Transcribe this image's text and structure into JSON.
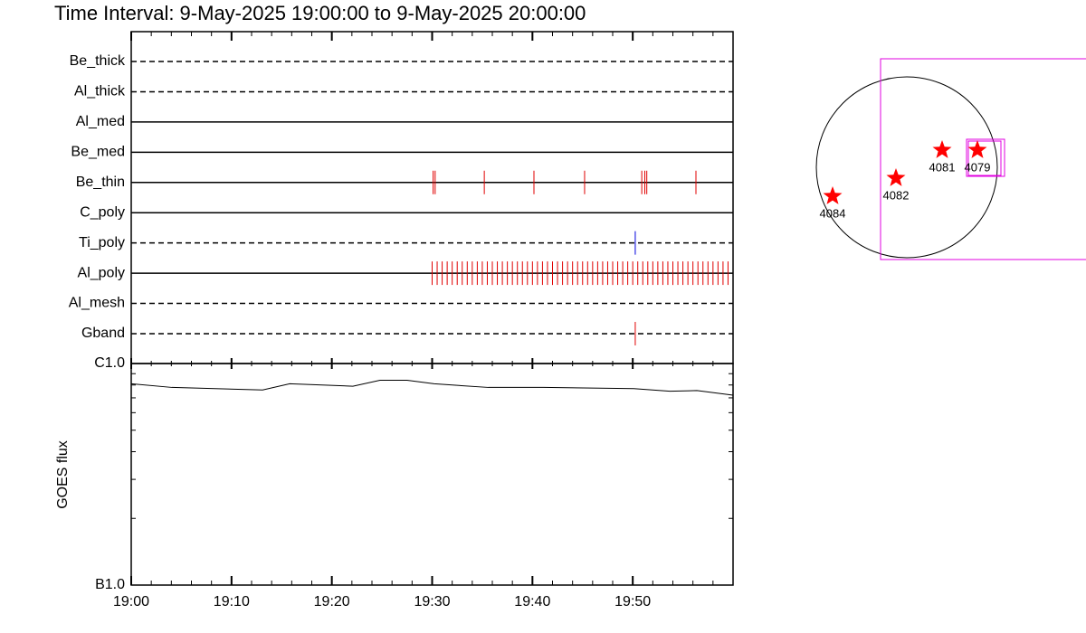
{
  "chart_data": [
    {
      "type": "event",
      "title": "Time Interval:  9-May-2025 19:00:00 to  9-May-2025 20:00:00",
      "xlim": [
        0,
        60
      ],
      "series": [
        {
          "name": "Be_thick",
          "style": "dashed",
          "color": "#e00000",
          "values": []
        },
        {
          "name": "Al_thick",
          "style": "dashed",
          "color": "#e00000",
          "values": []
        },
        {
          "name": "Al_med",
          "style": "solid",
          "color": "#e00000",
          "values": []
        },
        {
          "name": "Be_med",
          "style": "solid",
          "color": "#e00000",
          "values": []
        },
        {
          "name": "Be_thin",
          "style": "solid",
          "color": "#e00000",
          "values": [
            30.1,
            30.3,
            35.2,
            40.15,
            45.2,
            50.9,
            51.2,
            51.4,
            56.3
          ]
        },
        {
          "name": "C_poly",
          "style": "solid",
          "color": "#e00000",
          "values": []
        },
        {
          "name": "Ti_poly",
          "style": "dashed",
          "color": "#0000dd",
          "values": [
            50.25
          ]
        },
        {
          "name": "Al_poly",
          "style": "solid",
          "color": "#e00000",
          "values": [
            30,
            30.5,
            31,
            31.5,
            32,
            32.5,
            33,
            33.5,
            34,
            34.5,
            35,
            35.5,
            36,
            36.5,
            37,
            37.5,
            38,
            38.5,
            39,
            39.5,
            40,
            40.5,
            41,
            41.5,
            42,
            42.5,
            43,
            43.5,
            44,
            44.5,
            45,
            45.5,
            46,
            46.5,
            47,
            47.5,
            48,
            48.5,
            49,
            49.5,
            50,
            50.5,
            51,
            51.5,
            52,
            52.5,
            53,
            53.5,
            54,
            54.5,
            55,
            55.5,
            56,
            56.5,
            57,
            57.5,
            58,
            58.5,
            59,
            59.5
          ]
        },
        {
          "name": "Al_mesh",
          "style": "dashed",
          "color": "#e00000",
          "values": []
        },
        {
          "name": "Gband",
          "style": "dashed",
          "color": "#e00000",
          "values": [
            50.25
          ]
        }
      ]
    },
    {
      "type": "line",
      "y_label": "GOES flux",
      "log_y": true,
      "xlim": [
        0,
        60
      ],
      "xticks": [
        {
          "value": 0,
          "label": "19:00"
        },
        {
          "value": 10,
          "label": "19:10"
        },
        {
          "value": 20,
          "label": "19:20"
        },
        {
          "value": 30,
          "label": "19:30"
        },
        {
          "value": 40,
          "label": "19:40"
        },
        {
          "value": 50,
          "label": "19:50"
        }
      ],
      "ylim": [
        1e-07,
        1e-06
      ],
      "yticks": [
        {
          "value": 1e-06,
          "label": "C1.0"
        },
        {
          "value": 1e-07,
          "label": "B1.0"
        }
      ],
      "yminor": [
        2e-07,
        3e-07,
        4e-07,
        5e-07,
        6e-07,
        7e-07,
        8e-07,
        9e-07
      ],
      "series": [
        {
          "name": "GOES",
          "color": "#000000",
          "x": [
            0,
            4.06,
            13.1,
            15.8,
            22.1,
            24.8,
            27.5,
            30.2,
            35.6,
            41.1,
            50.1,
            53.7,
            56.4,
            60
          ],
          "values": [
            8.1e-07,
            7.8e-07,
            7.6e-07,
            8.1e-07,
            7.9e-07,
            8.4e-07,
            8.4e-07,
            8.1e-07,
            7.8e-07,
            7.8e-07,
            7.7e-07,
            7.5e-07,
            7.55e-07,
            7.2e-07
          ]
        }
      ]
    }
  ],
  "map": {
    "regions": [
      "4084",
      "4082",
      "4081",
      "4079"
    ]
  }
}
